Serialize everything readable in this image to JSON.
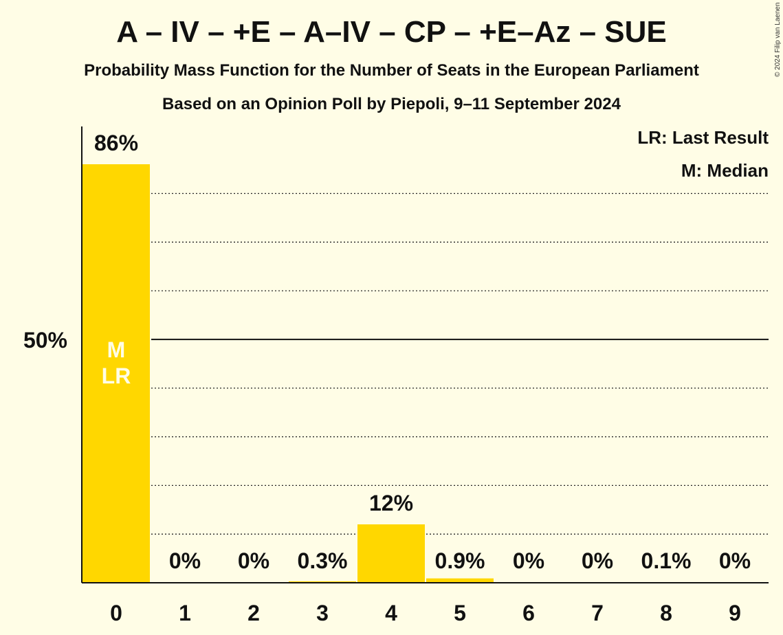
{
  "header": {
    "title": "A – IV – +E – A–IV – CP – +E–Az – SUE",
    "subtitle": "Probability Mass Function for the Number of Seats in the European Parliament",
    "source": "Based on an Opinion Poll by Piepoli, 9–11 September 2024",
    "copyright": "© 2024 Filip van Laenen"
  },
  "legend": {
    "last_result": "LR: Last Result",
    "median": "M: Median",
    "placement": "top-right"
  },
  "colors": {
    "background": "#FFFDE6",
    "bar": "#FFD700",
    "bar_text": "#FFFDE6",
    "text": "#111111"
  },
  "chart_data": {
    "type": "bar",
    "title": "A – IV – +E – A–IV – CP – +E–Az – SUE",
    "categories": [
      "0",
      "1",
      "2",
      "3",
      "4",
      "5",
      "6",
      "7",
      "8",
      "9"
    ],
    "values": [
      86,
      0,
      0,
      0.3,
      12,
      0.9,
      0,
      0,
      0.1,
      0
    ],
    "labels": [
      "86%",
      "0%",
      "0%",
      "0.3%",
      "12%",
      "0.9%",
      "0%",
      "0%",
      "0.1%",
      "0%"
    ],
    "ylim": [
      0,
      86
    ],
    "y_tick_label": "50%",
    "y_tick_value": 50,
    "gridlines": [
      10,
      20,
      30,
      40,
      60,
      70,
      80
    ],
    "grid": true,
    "median_index": 0,
    "last_result_index": 0,
    "median_marker": "M",
    "last_result_marker": "LR"
  }
}
